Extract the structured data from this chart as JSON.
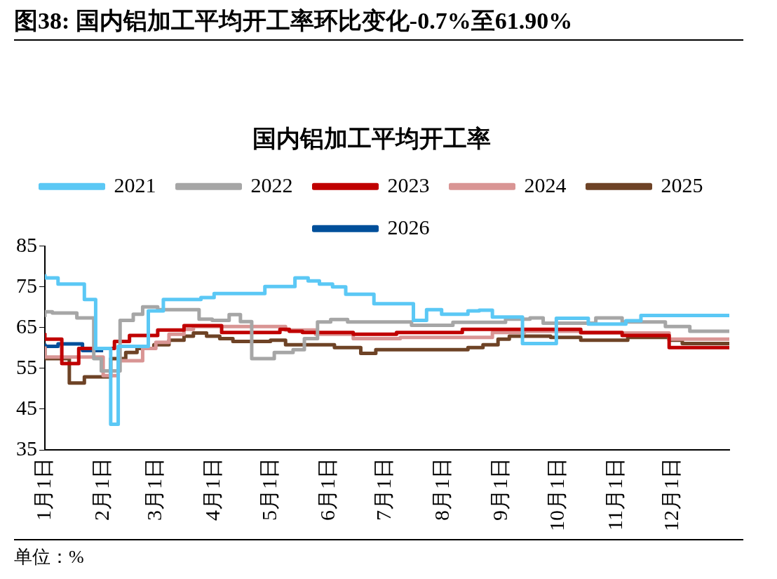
{
  "chart_data": {
    "type": "step",
    "title": "图38: 国内铝加工平均开工率环比变化-0.7%至61.90%",
    "subtitle": "国内铝加工平均开工率",
    "annotations": [
      "单位：%"
    ],
    "xlim": [
      "--01-01",
      "--12-31"
    ],
    "xticks": [
      {
        "value": "--01-01",
        "label": "1月1日"
      },
      {
        "value": "--02-01",
        "label": "2月1日"
      },
      {
        "value": "--03-01",
        "label": "3月1日"
      },
      {
        "value": "--04-01",
        "label": "4月1日"
      },
      {
        "value": "--05-01",
        "label": "5月1日"
      },
      {
        "value": "--06-01",
        "label": "6月1日"
      },
      {
        "value": "--07-01",
        "label": "7月1日"
      },
      {
        "value": "--08-01",
        "label": "8月1日"
      },
      {
        "value": "--09-01",
        "label": "9月1日"
      },
      {
        "value": "--10-01",
        "label": "10月1日"
      },
      {
        "value": "--11-01",
        "label": "11月1日"
      },
      {
        "value": "--12-01",
        "label": "12月1日"
      }
    ],
    "ylim": [
      35,
      85
    ],
    "yticks": [
      35,
      45,
      55,
      65,
      75,
      85
    ],
    "grid": false,
    "legend": "top",
    "marker": "none",
    "line_style": "solid",
    "series": [
      {
        "name": "2021",
        "color": "#5bc8f5",
        "x": [
          "--01-01",
          "--01-08",
          "--01-22",
          "--01-28",
          "--02-05",
          "--02-09",
          "--02-25",
          "--03-05",
          "--03-25",
          "--04-01",
          "--04-28",
          "--05-14",
          "--05-21",
          "--05-27",
          "--06-03",
          "--06-10",
          "--06-25",
          "--07-16",
          "--07-23",
          "--07-31",
          "--08-14",
          "--08-20",
          "--08-27",
          "--09-12",
          "--09-30",
          "--10-17",
          "--11-06",
          "--11-14",
          "--12-11",
          "--12-31"
        ],
        "values": [
          78.1,
          77.2,
          75.7,
          71.9,
          59.9,
          41.3,
          60.4,
          69.1,
          71.9,
          72.4,
          73.4,
          75.1,
          77.2,
          76.5,
          75.7,
          75.0,
          73.2,
          70.9,
          66.8,
          69.4,
          68.3,
          69.1,
          69.3,
          67.6,
          61.1,
          67.3,
          65.9,
          66.7,
          68.0,
          68.0
        ]
      },
      {
        "name": "2022",
        "color": "#a6a6a6",
        "x": [
          "--01-01",
          "--01-05",
          "--01-18",
          "--01-27",
          "--01-31",
          "--02-10",
          "--02-17",
          "--02-22",
          "--03-02",
          "--03-24",
          "--03-31",
          "--04-09",
          "--04-15",
          "--04-21",
          "--05-03",
          "--05-13",
          "--05-19",
          "--05-26",
          "--06-02",
          "--06-11",
          "--07-15",
          "--08-06",
          "--09-03",
          "--09-16",
          "--09-23",
          "--10-21",
          "--11-04",
          "--11-27",
          "--12-10",
          "--12-23",
          "--12-31"
        ],
        "values": [
          67.6,
          68.9,
          68.6,
          67.4,
          57.4,
          54.4,
          66.8,
          68.3,
          70.1,
          69.4,
          67.1,
          66.8,
          68.2,
          66.5,
          57.4,
          58.9,
          59.6,
          62.3,
          66.4,
          67.0,
          66.4,
          65.6,
          66.3,
          67.1,
          67.4,
          66.1,
          67.4,
          66.4,
          65.3,
          64.1,
          64.1
        ]
      },
      {
        "name": "2023",
        "color": "#c00000",
        "x": [
          "--01-01",
          "--01-10",
          "--01-19",
          "--02-07",
          "--02-15",
          "--03-02",
          "--03-16",
          "--04-05",
          "--05-06",
          "--05-11",
          "--05-18",
          "--06-14",
          "--07-07",
          "--08-11",
          "--10-13",
          "--11-04",
          "--11-29",
          "--12-29",
          "--12-31"
        ],
        "values": [
          63.7,
          62.2,
          56.2,
          59.9,
          61.6,
          63.1,
          64.4,
          65.5,
          63.8,
          64.6,
          64.1,
          63.8,
          63.4,
          63.8,
          64.6,
          63.8,
          63.1,
          60.1,
          60.1
        ]
      },
      {
        "name": "2024",
        "color": "#d99594",
        "x": [
          "--01-01",
          "--02-01",
          "--02-09",
          "--02-22",
          "--03-01",
          "--03-08",
          "--03-16",
          "--03-21",
          "--05-09",
          "--05-25",
          "--06-14",
          "--07-09",
          "--08-27",
          "--09-13",
          "--10-13",
          "--11-29",
          "--12-26",
          "--12-31"
        ],
        "values": [
          60.4,
          57.8,
          53.2,
          56.9,
          59.9,
          61.4,
          63.4,
          64.6,
          65.3,
          64.4,
          63.4,
          62.3,
          62.6,
          63.8,
          64.1,
          63.7,
          62.2,
          62.2
        ]
      },
      {
        "name": "2025",
        "color": "#6e4326",
        "x": [
          "--01-01",
          "--01-14",
          "--01-22",
          "--02-05",
          "--02-13",
          "--02-19",
          "--02-28",
          "--03-08",
          "--03-16",
          "--03-21",
          "--03-28",
          "--04-04",
          "--04-11",
          "--05-01",
          "--05-09",
          "--06-04",
          "--06-18",
          "--06-26",
          "--08-14",
          "--08-22",
          "--08-30",
          "--09-05",
          "--09-27",
          "--10-13",
          "--11-07",
          "--11-29",
          "--12-06",
          "--12-23",
          "--12-31"
        ],
        "values": [
          60.1,
          57.4,
          51.4,
          52.9,
          57.4,
          58.9,
          59.9,
          60.8,
          61.9,
          62.9,
          63.7,
          62.9,
          62.3,
          61.6,
          61.9,
          60.8,
          60.1,
          58.7,
          59.6,
          60.1,
          60.8,
          62.2,
          62.9,
          62.6,
          61.9,
          62.6,
          61.9,
          61.1,
          61.1
        ]
      },
      {
        "name": "2026",
        "color": "#004f9a",
        "x": [
          "--01-01",
          "--01-08",
          "--01-21",
          "--01-29",
          "--02-01"
        ],
        "values": [
          61.1,
          60.4,
          61.0,
          59.4,
          59.4
        ]
      }
    ]
  }
}
